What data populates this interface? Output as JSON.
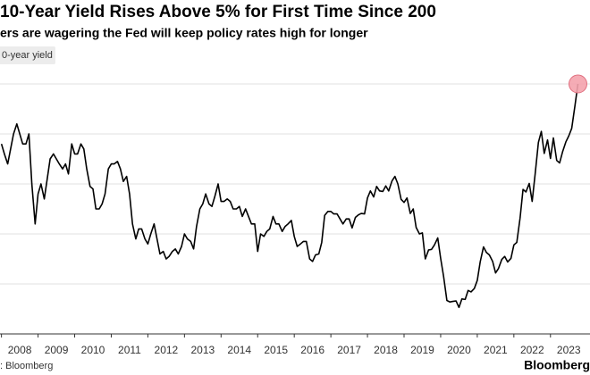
{
  "chart_data": {
    "type": "line",
    "title": "10-Year Yield Rises Above 5% for First Time Since 200",
    "subtitle": "ers are wagering the Fed will keep policy rates high for longer",
    "source": ": Bloomberg",
    "brand": "Bloomberg",
    "x": [
      2008,
      2008.08,
      2008.17,
      2008.25,
      2008.33,
      2008.42,
      2008.5,
      2008.58,
      2008.67,
      2008.75,
      2008.83,
      2008.92,
      2009,
      2009.08,
      2009.17,
      2009.25,
      2009.33,
      2009.42,
      2009.5,
      2009.58,
      2009.67,
      2009.75,
      2009.83,
      2009.92,
      2010,
      2010.08,
      2010.17,
      2010.25,
      2010.33,
      2010.42,
      2010.5,
      2010.58,
      2010.67,
      2010.75,
      2010.83,
      2010.92,
      2011,
      2011.08,
      2011.17,
      2011.25,
      2011.33,
      2011.42,
      2011.5,
      2011.58,
      2011.67,
      2011.75,
      2011.83,
      2011.92,
      2012,
      2012.08,
      2012.17,
      2012.25,
      2012.33,
      2012.42,
      2012.5,
      2012.58,
      2012.67,
      2012.75,
      2012.83,
      2012.92,
      2013,
      2013.08,
      2013.17,
      2013.25,
      2013.33,
      2013.42,
      2013.5,
      2013.58,
      2013.67,
      2013.75,
      2013.83,
      2013.92,
      2014,
      2014.08,
      2014.17,
      2014.25,
      2014.33,
      2014.42,
      2014.5,
      2014.58,
      2014.67,
      2014.75,
      2014.83,
      2014.92,
      2015,
      2015.08,
      2015.17,
      2015.25,
      2015.33,
      2015.42,
      2015.5,
      2015.58,
      2015.67,
      2015.75,
      2015.83,
      2015.92,
      2016,
      2016.08,
      2016.17,
      2016.25,
      2016.33,
      2016.42,
      2016.5,
      2016.58,
      2016.67,
      2016.75,
      2016.83,
      2016.92,
      2017,
      2017.08,
      2017.17,
      2017.25,
      2017.33,
      2017.42,
      2017.5,
      2017.58,
      2017.67,
      2017.75,
      2017.83,
      2017.92,
      2018,
      2018.08,
      2018.17,
      2018.25,
      2018.33,
      2018.42,
      2018.5,
      2018.58,
      2018.67,
      2018.75,
      2018.83,
      2018.92,
      2019,
      2019.08,
      2019.17,
      2019.25,
      2019.33,
      2019.42,
      2019.5,
      2019.58,
      2019.67,
      2019.75,
      2019.83,
      2019.92,
      2020,
      2020.08,
      2020.17,
      2020.25,
      2020.33,
      2020.42,
      2020.5,
      2020.58,
      2020.67,
      2020.75,
      2020.83,
      2020.92,
      2021,
      2021.08,
      2021.17,
      2021.25,
      2021.33,
      2021.42,
      2021.5,
      2021.58,
      2021.67,
      2021.75,
      2021.83,
      2021.92,
      2022,
      2022.08,
      2022.17,
      2022.25,
      2022.33,
      2022.42,
      2022.5,
      2022.58,
      2022.67,
      2022.75,
      2022.83,
      2022.92,
      2023,
      2023.08,
      2023.17,
      2023.25,
      2023.33,
      2023.42,
      2023.5,
      2023.58,
      2023.67,
      2023.75
    ],
    "series": [
      {
        "name": "0-year yield",
        "color": "#000000",
        "values": [
          3.8,
          3.6,
          3.4,
          3.7,
          4.0,
          4.2,
          4.0,
          3.8,
          3.8,
          4.0,
          3.0,
          2.2,
          2.8,
          3.0,
          2.7,
          3.1,
          3.5,
          3.6,
          3.5,
          3.4,
          3.3,
          3.4,
          3.2,
          3.8,
          3.6,
          3.6,
          3.8,
          3.7,
          3.3,
          2.95,
          2.9,
          2.5,
          2.5,
          2.6,
          2.8,
          3.3,
          3.4,
          3.4,
          3.45,
          3.3,
          3.05,
          3.15,
          2.8,
          2.2,
          1.9,
          2.1,
          2.1,
          1.9,
          1.8,
          2.0,
          2.2,
          1.9,
          1.6,
          1.65,
          1.5,
          1.55,
          1.65,
          1.7,
          1.6,
          1.75,
          2.0,
          1.9,
          1.85,
          1.7,
          2.15,
          2.5,
          2.6,
          2.8,
          2.6,
          2.55,
          2.75,
          3.0,
          2.65,
          2.65,
          2.7,
          2.65,
          2.5,
          2.5,
          2.55,
          2.35,
          2.5,
          2.35,
          2.2,
          2.2,
          1.65,
          2.0,
          1.95,
          2.05,
          2.1,
          2.35,
          2.2,
          2.2,
          2.05,
          2.15,
          2.2,
          2.27,
          1.95,
          1.75,
          1.8,
          1.85,
          1.85,
          1.5,
          1.45,
          1.58,
          1.6,
          1.83,
          2.37,
          2.45,
          2.45,
          2.4,
          2.4,
          2.3,
          2.2,
          2.3,
          2.3,
          2.12,
          2.33,
          2.38,
          2.41,
          2.4,
          2.72,
          2.86,
          2.74,
          2.95,
          2.86,
          2.85,
          2.96,
          2.86,
          3.06,
          3.15,
          3.0,
          2.69,
          2.63,
          2.72,
          2.41,
          2.5,
          2.13,
          2.0,
          2.02,
          1.5,
          1.68,
          1.69,
          1.78,
          1.92,
          1.51,
          1.15,
          0.67,
          0.64,
          0.65,
          0.66,
          0.53,
          0.7,
          0.69,
          0.87,
          0.84,
          0.91,
          1.07,
          1.44,
          1.74,
          1.63,
          1.58,
          1.45,
          1.22,
          1.31,
          1.49,
          1.55,
          1.44,
          1.51,
          1.78,
          1.83,
          2.32,
          2.89,
          2.84,
          3.01,
          2.65,
          3.19,
          3.83,
          4.05,
          3.61,
          3.88,
          3.51,
          3.92,
          3.47,
          3.42,
          3.64,
          3.84,
          3.96,
          4.11,
          4.57,
          5.0
        ]
      }
    ],
    "xlim": [
      2007.96,
      2024.08
    ],
    "xticks": [
      2008,
      2009,
      2010,
      2011,
      2012,
      2013,
      2014,
      2015,
      2016,
      2017,
      2018,
      2019,
      2020,
      2021,
      2022,
      2023
    ],
    "ylim": [
      0,
      5.4
    ],
    "yticks": [
      1,
      2,
      3,
      4,
      5
    ],
    "grid": true,
    "marker_color": "#f4a3ad"
  }
}
